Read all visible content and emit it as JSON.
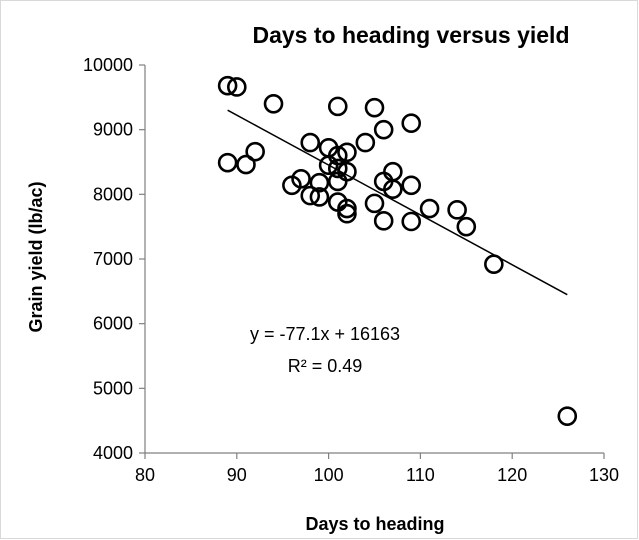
{
  "chart_data": {
    "type": "scatter",
    "title": "Days to heading versus yield",
    "xlabel": "Days to heading",
    "ylabel": "Grain yield (lb/ac)",
    "xlim": [
      80,
      130
    ],
    "ylim": [
      4000,
      10000
    ],
    "xticks": [
      "80",
      "90",
      "100",
      "110",
      "120",
      "130"
    ],
    "yticks": [
      "4000",
      "5000",
      "6000",
      "7000",
      "8000",
      "9000",
      "10000"
    ],
    "grid": false,
    "legend": "none",
    "points": [
      {
        "x": 89,
        "y": 9680
      },
      {
        "x": 90,
        "y": 9660
      },
      {
        "x": 94,
        "y": 9400
      },
      {
        "x": 101,
        "y": 9360
      },
      {
        "x": 105,
        "y": 9340
      },
      {
        "x": 109,
        "y": 9100
      },
      {
        "x": 106,
        "y": 9000
      },
      {
        "x": 98,
        "y": 8800
      },
      {
        "x": 104,
        "y": 8800
      },
      {
        "x": 100,
        "y": 8720
      },
      {
        "x": 102,
        "y": 8650
      },
      {
        "x": 101,
        "y": 8600
      },
      {
        "x": 92,
        "y": 8660
      },
      {
        "x": 89,
        "y": 8490
      },
      {
        "x": 91,
        "y": 8460
      },
      {
        "x": 100,
        "y": 8450
      },
      {
        "x": 101,
        "y": 8400
      },
      {
        "x": 102,
        "y": 8350
      },
      {
        "x": 107,
        "y": 8350
      },
      {
        "x": 97,
        "y": 8240
      },
      {
        "x": 101,
        "y": 8200
      },
      {
        "x": 106,
        "y": 8200
      },
      {
        "x": 96,
        "y": 8140
      },
      {
        "x": 99,
        "y": 8180
      },
      {
        "x": 109,
        "y": 8140
      },
      {
        "x": 107,
        "y": 8080
      },
      {
        "x": 98,
        "y": 7980
      },
      {
        "x": 99,
        "y": 7960
      },
      {
        "x": 101,
        "y": 7880
      },
      {
        "x": 105,
        "y": 7860
      },
      {
        "x": 102,
        "y": 7780
      },
      {
        "x": 111,
        "y": 7780
      },
      {
        "x": 114,
        "y": 7760
      },
      {
        "x": 102,
        "y": 7700
      },
      {
        "x": 106,
        "y": 7590
      },
      {
        "x": 109,
        "y": 7580
      },
      {
        "x": 115,
        "y": 7500
      },
      {
        "x": 118,
        "y": 6920
      },
      {
        "x": 126,
        "y": 4570
      }
    ],
    "trendline": {
      "slope": -77.1,
      "intercept": 16163,
      "x_range": [
        89,
        126
      ]
    },
    "annotations": {
      "equation": "y = -77.1x + 16163",
      "r_squared": "R² = 0.49"
    }
  }
}
